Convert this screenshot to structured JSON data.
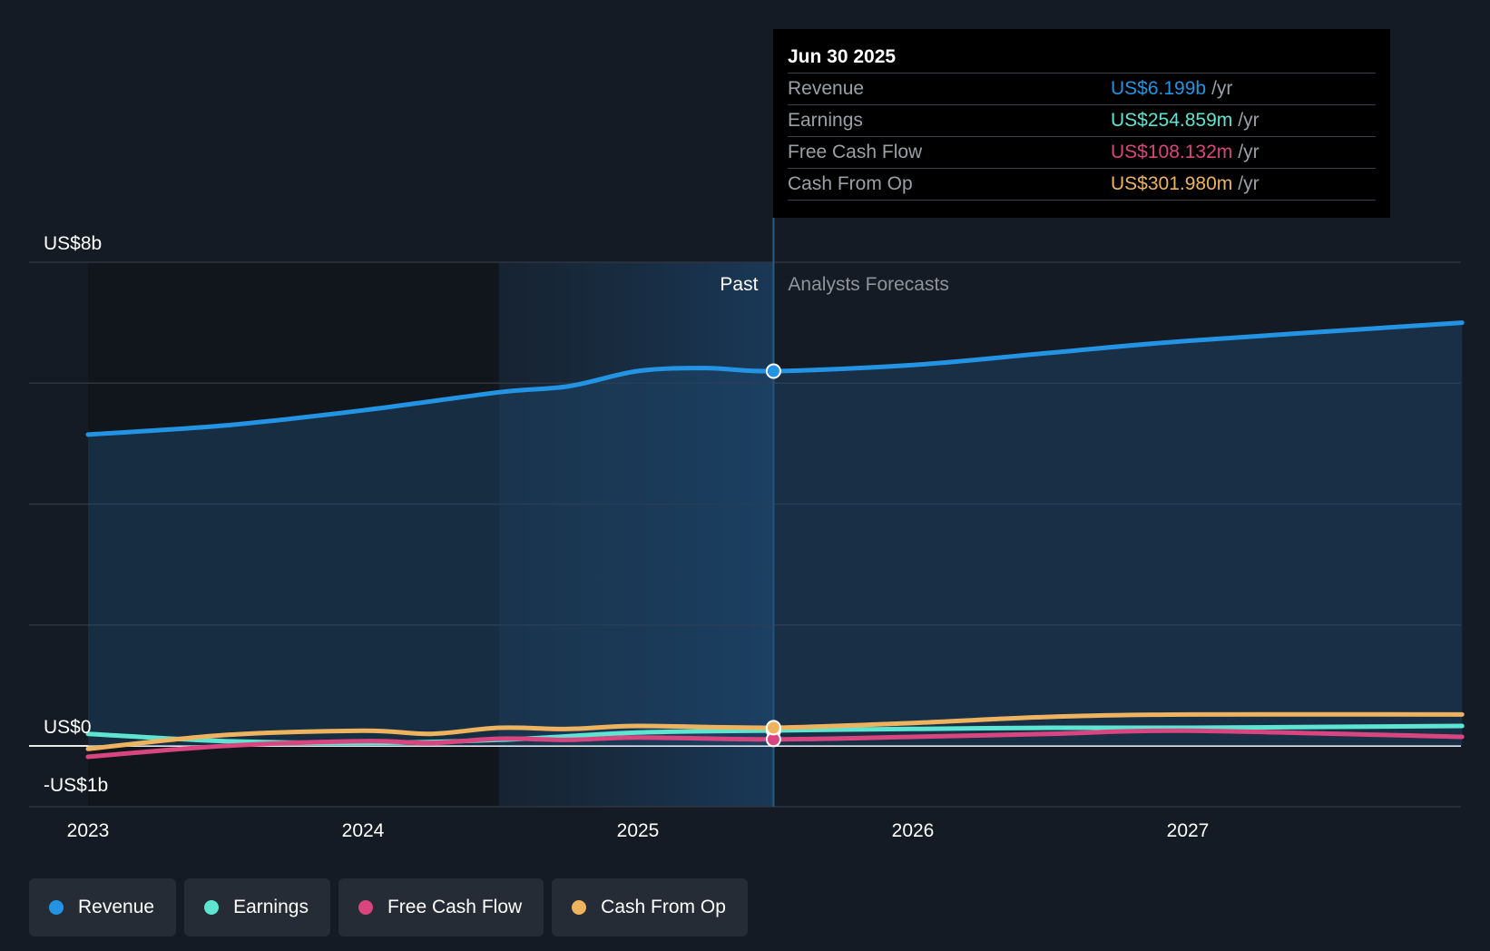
{
  "chart_data": {
    "type": "line",
    "x_axis": {
      "ticks": [
        "2023",
        "2024",
        "2025",
        "2026",
        "2027"
      ],
      "range": [
        "2023-01-01",
        "2027-12-31"
      ]
    },
    "y_axis": {
      "unit": "US$b",
      "range": [
        -1,
        8
      ],
      "labeled_ticks": [
        {
          "value": 8,
          "label": "US$8b"
        },
        {
          "value": 0,
          "label": "US$0"
        },
        {
          "value": -1,
          "label": "-US$1b"
        }
      ],
      "gridlines": [
        8,
        6,
        4,
        2,
        0
      ]
    },
    "grid": true,
    "divider": {
      "date": "2025-06-30",
      "past_label": "Past",
      "forecast_label": "Analysts Forecasts",
      "past_highlight_start": "2024-06-30"
    },
    "series": [
      {
        "name": "Revenue",
        "color": "#2394e4",
        "filled": true,
        "points": [
          [
            "2023-01-01",
            5.15
          ],
          [
            "2023-07-01",
            5.3
          ],
          [
            "2024-01-01",
            5.55
          ],
          [
            "2024-07-01",
            5.85
          ],
          [
            "2024-10-01",
            5.95
          ],
          [
            "2025-01-01",
            6.2
          ],
          [
            "2025-04-01",
            6.25
          ],
          [
            "2025-06-30",
            6.199
          ],
          [
            "2026-01-01",
            6.3
          ],
          [
            "2026-07-01",
            6.5
          ],
          [
            "2027-01-01",
            6.7
          ],
          [
            "2027-12-31",
            7.0
          ]
        ]
      },
      {
        "name": "Earnings",
        "color": "#5ee5d2",
        "filled": false,
        "points": [
          [
            "2023-01-01",
            0.2
          ],
          [
            "2023-07-01",
            0.08
          ],
          [
            "2024-01-01",
            0.05
          ],
          [
            "2024-07-01",
            0.1
          ],
          [
            "2025-01-01",
            0.22
          ],
          [
            "2025-06-30",
            0.255
          ],
          [
            "2026-01-01",
            0.28
          ],
          [
            "2026-07-01",
            0.3
          ],
          [
            "2027-01-01",
            0.3
          ],
          [
            "2027-12-31",
            0.33
          ]
        ]
      },
      {
        "name": "Free Cash Flow",
        "color": "#d9457f",
        "filled": false,
        "points": [
          [
            "2023-01-01",
            -0.18
          ],
          [
            "2023-07-01",
            0.0
          ],
          [
            "2024-01-01",
            0.08
          ],
          [
            "2024-04-01",
            0.05
          ],
          [
            "2024-07-01",
            0.12
          ],
          [
            "2024-10-01",
            0.1
          ],
          [
            "2025-01-01",
            0.14
          ],
          [
            "2025-06-30",
            0.108
          ],
          [
            "2026-01-01",
            0.15
          ],
          [
            "2026-07-01",
            0.2
          ],
          [
            "2027-01-01",
            0.25
          ],
          [
            "2027-12-31",
            0.15
          ]
        ]
      },
      {
        "name": "Cash From Op",
        "color": "#eeb35f",
        "filled": false,
        "points": [
          [
            "2023-01-01",
            -0.05
          ],
          [
            "2023-07-01",
            0.18
          ],
          [
            "2024-01-01",
            0.25
          ],
          [
            "2024-04-01",
            0.2
          ],
          [
            "2024-07-01",
            0.3
          ],
          [
            "2024-10-01",
            0.28
          ],
          [
            "2025-01-01",
            0.33
          ],
          [
            "2025-06-30",
            0.302
          ],
          [
            "2026-01-01",
            0.38
          ],
          [
            "2026-07-01",
            0.48
          ],
          [
            "2027-01-01",
            0.52
          ],
          [
            "2027-12-31",
            0.52
          ]
        ]
      }
    ],
    "tooltip": {
      "date": "Jun 30 2025",
      "rows": [
        {
          "label": "Revenue",
          "value": "US$6.199b",
          "unit": "/yr",
          "color": "#2394e4"
        },
        {
          "label": "Earnings",
          "value": "US$254.859m",
          "unit": "/yr",
          "color": "#5ee5d2"
        },
        {
          "label": "Free Cash Flow",
          "value": "US$108.132m",
          "unit": "/yr",
          "color": "#d9457f"
        },
        {
          "label": "Cash From Op",
          "value": "US$301.980m",
          "unit": "/yr",
          "color": "#eeb35f"
        }
      ]
    },
    "legend": [
      {
        "label": "Revenue",
        "color": "#2394e4"
      },
      {
        "label": "Earnings",
        "color": "#5ee5d2"
      },
      {
        "label": "Free Cash Flow",
        "color": "#d9457f"
      },
      {
        "label": "Cash From Op",
        "color": "#eeb35f"
      }
    ]
  }
}
